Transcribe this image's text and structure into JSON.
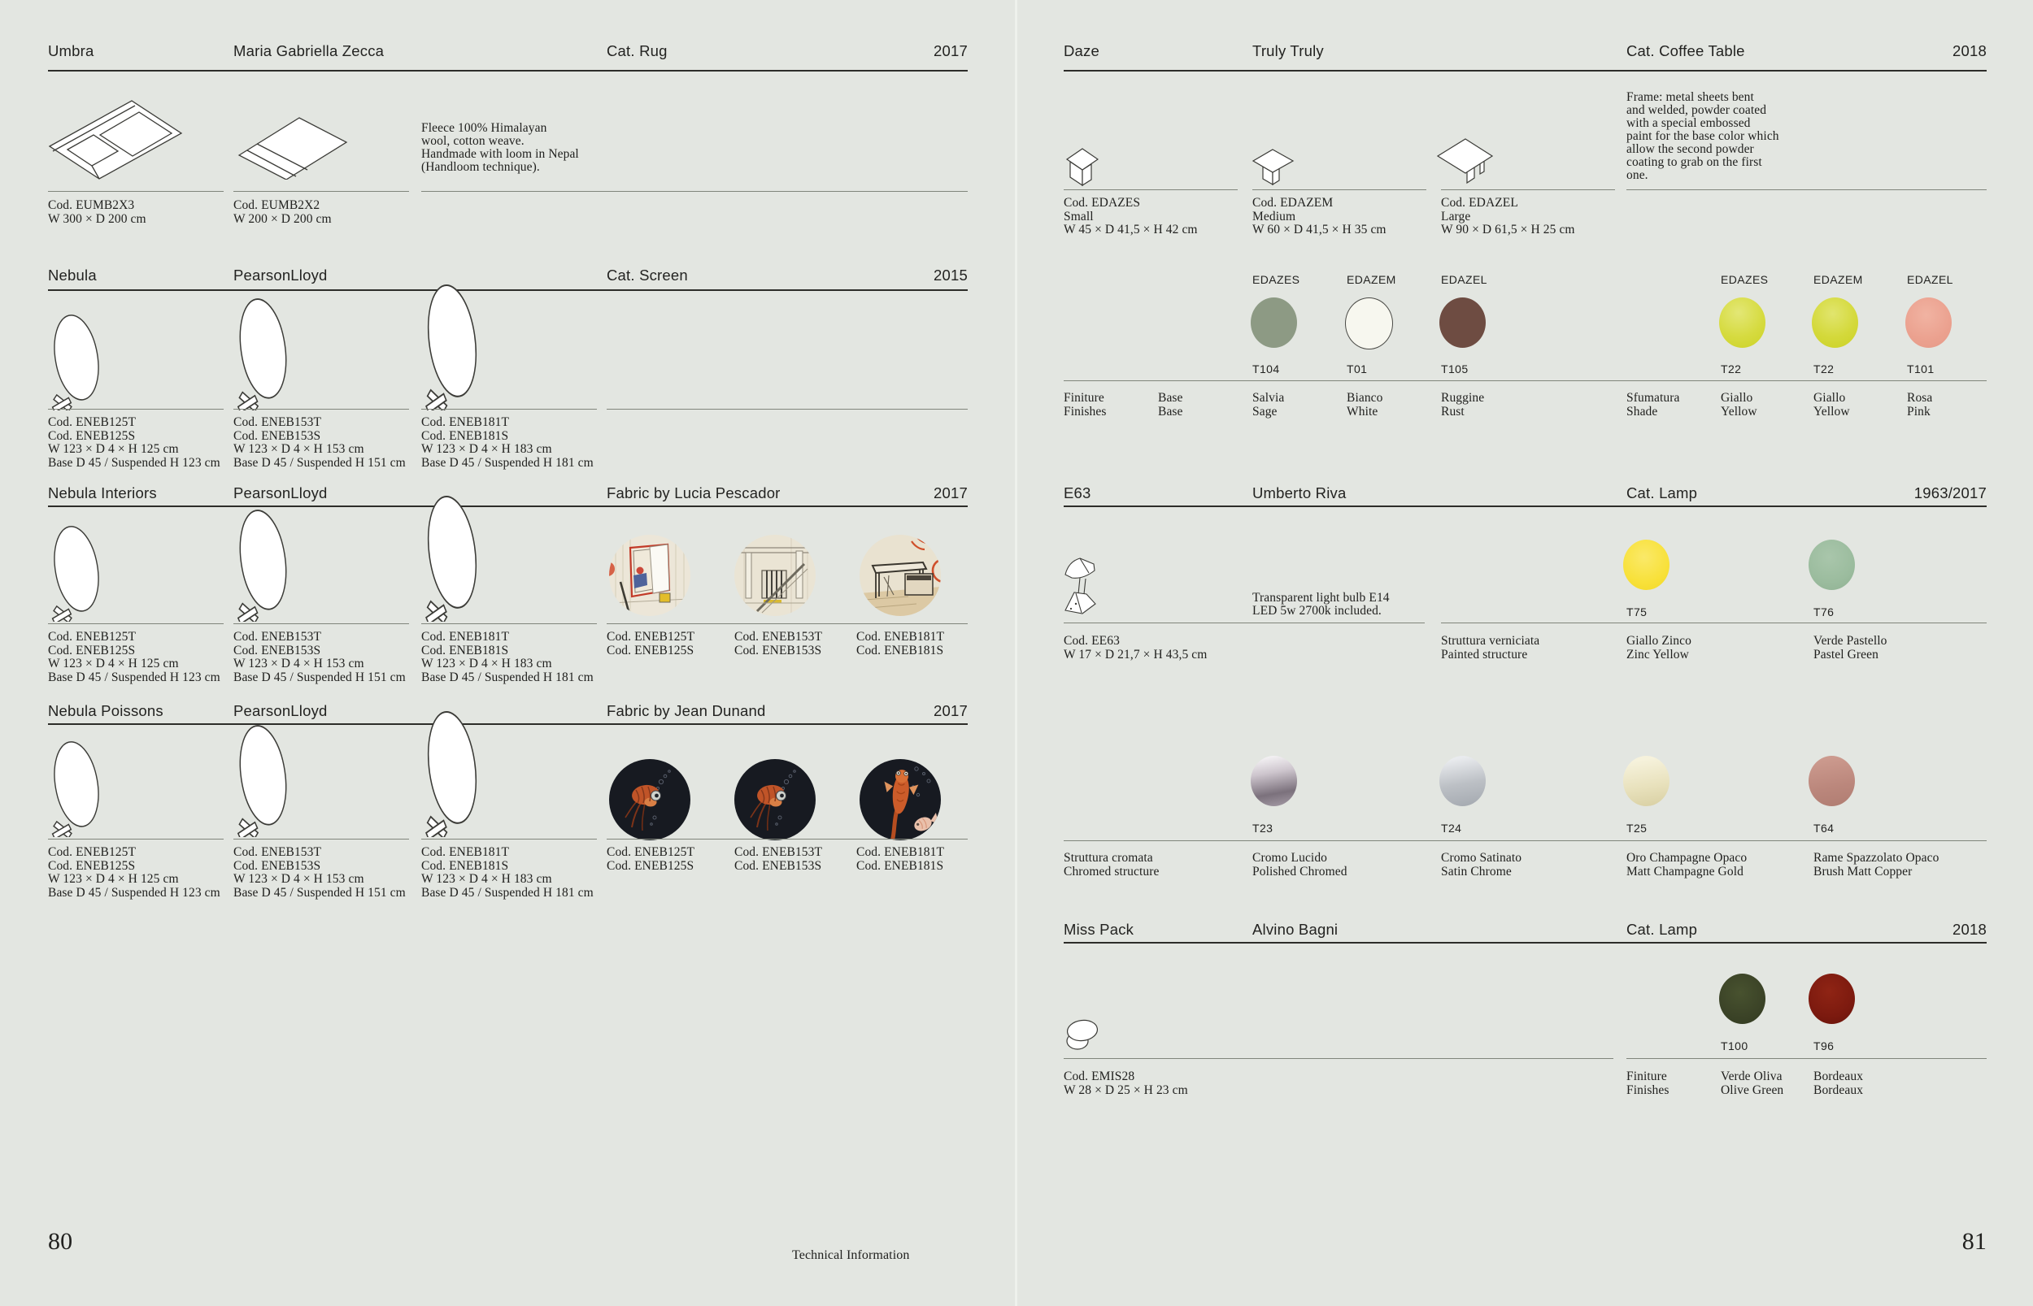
{
  "theme": {
    "page-bg": "#e3e6e1",
    "ink": "#21211f",
    "rule-dark": "#2d2d29",
    "rule-light": "#80857b",
    "gutter": "#eef1ec",
    "fabric-dark-bg": "#171a21"
  },
  "footer": {
    "left_page_number": "80",
    "section_title": "Technical Information",
    "right_page_number": "81"
  },
  "left_page": {
    "rows": [
      {
        "product": "Umbra",
        "designer": "Maria Gabriella Zecca",
        "category": "Cat. Rug",
        "year": "2017",
        "description": [
          "Fleece 100% Himalayan",
          "wool, cotton weave.",
          "Handmade with loom in Nepal",
          "(Handloom technique)."
        ],
        "specs": [
          {
            "lines": [
              "Cod. EUMB2X3",
              "W 300 × D 200 cm"
            ]
          },
          {
            "lines": [
              "Cod. EUMB2X2",
              "W 200 × D 200 cm"
            ]
          }
        ]
      },
      {
        "product": "Nebula",
        "designer": "PearsonLloyd",
        "category": "Cat. Screen",
        "year": "2015",
        "specs": [
          {
            "lines": [
              "Cod. ENEB125T",
              "Cod. ENEB125S",
              "W 123 × D 4 × H 125 cm",
              "Base D 45 / Suspended H 123 cm"
            ]
          },
          {
            "lines": [
              "Cod. ENEB153T",
              "Cod. ENEB153S",
              "W 123 × D 4 × H 153 cm",
              "Base D 45 / Suspended H 151 cm"
            ]
          },
          {
            "lines": [
              "Cod. ENEB181T",
              "Cod. ENEB181S",
              "W 123 × D 4 × H 183 cm",
              "Base D 45 / Suspended H 181 cm"
            ]
          }
        ]
      },
      {
        "product": "Nebula Interiors",
        "designer": "PearsonLloyd",
        "category": "Fabric by Lucia Pescador",
        "year": "2017",
        "specs": [
          {
            "lines": [
              "Cod. ENEB125T",
              "Cod. ENEB125S",
              "W 123 × D 4 × H 125 cm",
              "Base D 45 / Suspended H 123 cm"
            ]
          },
          {
            "lines": [
              "Cod. ENEB153T",
              "Cod. ENEB153S",
              "W 123 × D 4 × H 153 cm",
              "Base D 45 / Suspended H 151 cm"
            ]
          },
          {
            "lines": [
              "Cod. ENEB181T",
              "Cod. ENEB181S",
              "W 123 × D 4 × H 183 cm",
              "Base D 45 / Suspended H 181 cm"
            ]
          }
        ],
        "fabric_specs": [
          {
            "lines": [
              "Cod. ENEB125T",
              "Cod. ENEB125S"
            ]
          },
          {
            "lines": [
              "Cod. ENEB153T",
              "Cod. ENEB153S"
            ]
          },
          {
            "lines": [
              "Cod. ENEB181T",
              "Cod. ENEB181S"
            ]
          }
        ]
      },
      {
        "product": "Nebula Poissons",
        "designer": "PearsonLloyd",
        "category": "Fabric by Jean Dunand",
        "year": "2017",
        "specs": [
          {
            "lines": [
              "Cod. ENEB125T",
              "Cod. ENEB125S",
              "W 123 × D 4 × H 125 cm",
              "Base D 45 / Suspended H 123 cm"
            ]
          },
          {
            "lines": [
              "Cod. ENEB153T",
              "Cod. ENEB153S",
              "W 123 × D 4 × H 153 cm",
              "Base D 45 / Suspended H 151 cm"
            ]
          },
          {
            "lines": [
              "Cod. ENEB181T",
              "Cod. ENEB181S",
              "W 123 × D 4 × H 183 cm",
              "Base D 45 / Suspended H 181 cm"
            ]
          }
        ],
        "fabric_specs": [
          {
            "lines": [
              "Cod. ENEB125T",
              "Cod. ENEB125S"
            ]
          },
          {
            "lines": [
              "Cod. ENEB153T",
              "Cod. ENEB153S"
            ]
          },
          {
            "lines": [
              "Cod. ENEB181T",
              "Cod. ENEB181S"
            ]
          }
        ]
      }
    ]
  },
  "right_page": {
    "rows": [
      {
        "product": "Daze",
        "designer": "Truly Truly",
        "category": "Cat. Coffee Table",
        "year": "2018",
        "description": [
          "Frame: metal sheets bent",
          "and welded, powder coated",
          "with a special embossed",
          "paint for the base color which",
          "allow the second powder",
          "coating to grab on the first",
          "one."
        ],
        "specs": [
          {
            "lines": [
              "Cod. EDAZES",
              "Small",
              "W 45 × D 41,5 × H 42 cm"
            ]
          },
          {
            "lines": [
              "Cod. EDAZEM",
              "Medium",
              "W 60 × D 41,5 × H 35 cm"
            ]
          },
          {
            "lines": [
              "Cod. EDAZEL",
              "Large",
              "W 90 × D 61,5 × H 25 cm"
            ]
          }
        ],
        "finish_columns_left": [
          "EDAZES",
          "EDAZEM",
          "EDAZEL"
        ],
        "finish_columns_right": [
          "EDAZES",
          "EDAZEM",
          "EDAZEL"
        ],
        "row_labels": [
          [
            "Finiture",
            "Finishes"
          ],
          [
            "Base",
            "Base"
          ]
        ],
        "shade_label": [
          "Sfumatura",
          "Shade"
        ],
        "base_swatches": [
          {
            "code": "T104",
            "name": [
              "Salvia",
              "Sage"
            ],
            "color": "#8d9a84"
          },
          {
            "code": "T01",
            "name": [
              "Bianco",
              "White"
            ],
            "color": "#f7f7ef",
            "outlined": true
          },
          {
            "code": "T105",
            "name": [
              "Ruggine",
              "Rust"
            ],
            "color": "#6e4c42"
          }
        ],
        "shade_swatches": [
          {
            "code": "T22",
            "name": [
              "Giallo",
              "Yellow"
            ],
            "color": "#d5da3b",
            "gradient": "radial-gradient(circle at 42% 30%, #e3e776 0%, #d6db40 55%, #ccd226 100%)"
          },
          {
            "code": "T22",
            "name": [
              "Giallo",
              "Yellow"
            ],
            "color": "#d5da3b",
            "gradient": "radial-gradient(circle at 45% 32%, #e1e56e 0%, #d4d93b 55%, #cbd124 100%)"
          },
          {
            "code": "T101",
            "name": [
              "Rosa",
              "Pink"
            ],
            "color": "#eca493",
            "gradient": "radial-gradient(circle at 45% 35%, #f1b3a2 0%, #eba18f 60%, #e59a88 100%)"
          }
        ]
      },
      {
        "product": "E63",
        "designer": "Umberto Riva",
        "category": "Cat. Lamp",
        "year": "1963/2017",
        "description": [
          "Transparent light bulb E14",
          "LED 5w 2700k included."
        ],
        "specs": [
          {
            "lines": [
              "Cod. EE63",
              "W 17 × D 21,7 × H 43,5 cm"
            ]
          }
        ],
        "painted_label": [
          "Struttura verniciata",
          "Painted structure"
        ],
        "painted_swatches": [
          {
            "code": "T75",
            "name": [
              "Giallo Zinco",
              "Zinc Yellow"
            ],
            "color": "#f8e13a",
            "gradient": "radial-gradient(circle at 45% 35%, #fae969 0%, #f8e13a 60%, #f2d826 100%)"
          },
          {
            "code": "T76",
            "name": [
              "Verde Pastello",
              "Pastel Green"
            ],
            "color": "#9bbc9e",
            "gradient": "radial-gradient(circle at 45% 35%, #a9c6ab 0%, #9bbc9e 60%, #8fb092 100%)"
          }
        ],
        "chromed_label": [
          "Struttura cromata",
          "Chromed structure"
        ],
        "chromed_swatches": [
          {
            "code": "T23",
            "name": [
              "Cromo Lucido",
              "Polished Chromed"
            ],
            "color": "#b5acb5",
            "gradient": "linear-gradient(170deg, #f6f4f6 5%, #cdc5cd 35%, #7b717c 72%, #a79da8 100%)"
          },
          {
            "code": "T24",
            "name": [
              "Cromo Satinato",
              "Satin Chrome"
            ],
            "color": "#bdc1c6",
            "gradient": "linear-gradient(170deg, #e9ebee 10%, #bcc0c5 55%, #a3a8af 100%)"
          },
          {
            "code": "T25",
            "name": [
              "Oro Champagne Opaco",
              "Matt Champagne Gold"
            ],
            "color": "#ebe5c2",
            "gradient": "linear-gradient(170deg, #f6f2dc 12%, #e8e1bc 60%, #d8cfa2 100%)"
          },
          {
            "code": "T64",
            "name": [
              "Rame Spazzolato Opaco",
              "Brush Matt Copper"
            ],
            "color": "#c28e83",
            "gradient": "linear-gradient(170deg, #cc9a8e 10%, #bb877c 60%, #b07d72 100%)"
          }
        ]
      },
      {
        "product": "Miss Pack",
        "designer": "Alvino Bagni",
        "category": "Cat. Lamp",
        "year": "2018",
        "specs": [
          {
            "lines": [
              "Cod. EMIS28",
              "W 28 × D 25 × H 23 cm"
            ]
          }
        ],
        "finish_label": [
          "Finiture",
          "Finishes"
        ],
        "finish_swatches": [
          {
            "code": "T100",
            "name": [
              "Verde Oliva",
              "Olive Green"
            ],
            "color": "#3b4327",
            "gradient": "radial-gradient(circle at 45% 38%, #48522f 0%, #3b4327 60%, #313a1f 100%)"
          },
          {
            "code": "T96",
            "name": [
              "Bordeaux",
              "Bordeaux"
            ],
            "color": "#7c1a0f",
            "gradient": "radial-gradient(circle at 45% 35%, #8f2414 0%, #7c1a0f 60%, #66130a 100%)"
          }
        ]
      }
    ]
  }
}
